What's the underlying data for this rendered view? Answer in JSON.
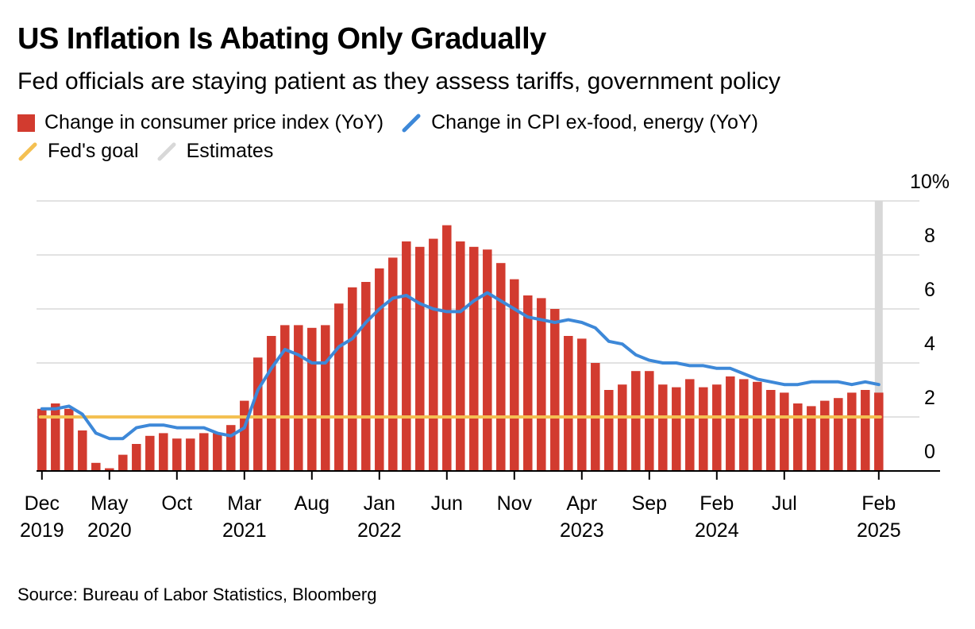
{
  "title": "US Inflation Is Abating Only Gradually",
  "subtitle": "Fed officials are staying patient as they assess tariffs, government policy",
  "legend": [
    {
      "label": "Change in consumer price index (YoY)",
      "type": "box",
      "color": "#d23b2f"
    },
    {
      "label": "Change in CPI ex-food, energy (YoY)",
      "type": "line",
      "color": "#3d88d8"
    },
    {
      "label": "Fed's goal",
      "type": "line",
      "color": "#f4c052"
    },
    {
      "label": "Estimates",
      "type": "line",
      "color": "#d8d8d8"
    }
  ],
  "source": "Source: Bureau of Labor Statistics, Bloomberg",
  "chart_data": {
    "type": "bar",
    "x_start": "2019-12",
    "series": [
      {
        "name": "Change in consumer price index (YoY)",
        "type": "bar",
        "color": "#d23b2f",
        "values": [
          2.3,
          2.5,
          2.3,
          1.5,
          0.3,
          0.1,
          0.6,
          1.0,
          1.3,
          1.4,
          1.2,
          1.2,
          1.4,
          1.4,
          1.7,
          2.6,
          4.2,
          5.0,
          5.4,
          5.4,
          5.3,
          5.4,
          6.2,
          6.8,
          7.0,
          7.5,
          7.9,
          8.5,
          8.3,
          8.6,
          9.1,
          8.5,
          8.3,
          8.2,
          7.7,
          7.1,
          6.5,
          6.4,
          6.0,
          5.0,
          4.9,
          4.0,
          3.0,
          3.2,
          3.7,
          3.7,
          3.2,
          3.1,
          3.4,
          3.1,
          3.2,
          3.5,
          3.4,
          3.3,
          3.0,
          2.9,
          2.5,
          2.4,
          2.6,
          2.7,
          2.9,
          3.0,
          2.9
        ]
      },
      {
        "name": "Change in CPI ex-food, energy (YoY)",
        "type": "line",
        "color": "#3d88d8",
        "values": [
          2.3,
          2.3,
          2.4,
          2.1,
          1.4,
          1.2,
          1.2,
          1.6,
          1.7,
          1.7,
          1.6,
          1.6,
          1.6,
          1.4,
          1.3,
          1.6,
          3.0,
          3.8,
          4.5,
          4.3,
          4.0,
          4.0,
          4.6,
          4.9,
          5.5,
          6.0,
          6.4,
          6.5,
          6.2,
          6.0,
          5.9,
          5.9,
          6.3,
          6.6,
          6.3,
          6.0,
          5.7,
          5.6,
          5.5,
          5.6,
          5.5,
          5.3,
          4.8,
          4.7,
          4.3,
          4.1,
          4.0,
          4.0,
          3.9,
          3.9,
          3.8,
          3.8,
          3.6,
          3.4,
          3.3,
          3.2,
          3.2,
          3.3,
          3.3,
          3.3,
          3.2,
          3.3,
          3.2
        ]
      },
      {
        "name": "Fed's goal",
        "type": "line",
        "color": "#f4c052",
        "value": 2.0
      },
      {
        "name": "Estimates",
        "type": "band",
        "color": "#d8d8d8",
        "at": "2025-02"
      }
    ],
    "ylim": [
      0,
      10
    ],
    "y_ticks": [
      "0",
      "2",
      "4",
      "6",
      "8",
      "10%"
    ],
    "x_ticks": [
      {
        "index": 0,
        "line1": "Dec",
        "line2": "2019"
      },
      {
        "index": 5,
        "line1": "May",
        "line2": "2020"
      },
      {
        "index": 10,
        "line1": "Oct",
        "line2": ""
      },
      {
        "index": 15,
        "line1": "Mar",
        "line2": "2021"
      },
      {
        "index": 20,
        "line1": "Aug",
        "line2": ""
      },
      {
        "index": 25,
        "line1": "Jan",
        "line2": "2022"
      },
      {
        "index": 30,
        "line1": "Jun",
        "line2": ""
      },
      {
        "index": 35,
        "line1": "Nov",
        "line2": ""
      },
      {
        "index": 40,
        "line1": "Apr",
        "line2": "2023"
      },
      {
        "index": 45,
        "line1": "Sep",
        "line2": ""
      },
      {
        "index": 50,
        "line1": "Feb",
        "line2": "2024"
      },
      {
        "index": 55,
        "line1": "Jul",
        "line2": ""
      },
      {
        "index": 62,
        "line1": "Feb",
        "line2": "2025"
      }
    ],
    "grid": true,
    "legend_position": "top-left"
  }
}
